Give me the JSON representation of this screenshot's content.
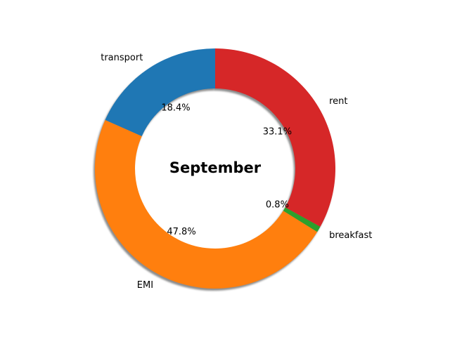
{
  "chart_data": {
    "type": "pie",
    "variant": "donut",
    "title": "September",
    "categories": [
      "rent",
      "breakfast",
      "EMI",
      "transport"
    ],
    "values": [
      33.1,
      0.8,
      47.8,
      18.4
    ],
    "percent_labels": [
      "33.1%",
      "0.8%",
      "47.8%",
      "18.4%"
    ],
    "colors": [
      "#d62728",
      "#2ca02c",
      "#ff7f0e",
      "#1f77b4"
    ],
    "start_angle_deg": 90,
    "direction": "clockwise",
    "shadow": true,
    "legend": "none"
  }
}
